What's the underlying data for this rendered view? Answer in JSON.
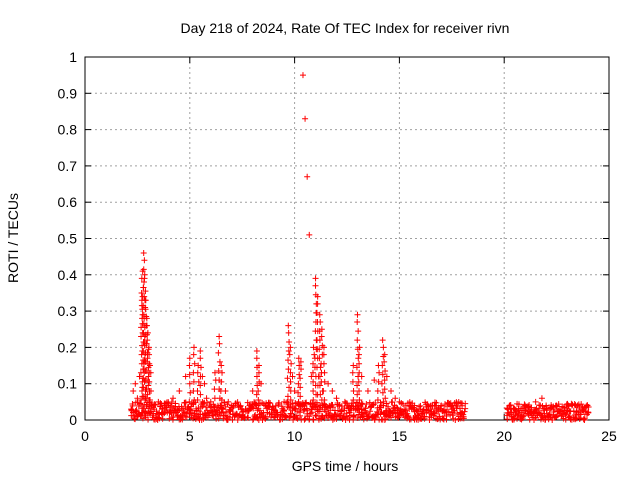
{
  "chart_data": {
    "type": "scatter",
    "title": "Day 218 of 2024, Rate Of TEC Index for receiver rivn",
    "xlabel": "GPS time / hours",
    "ylabel": "ROTI / TECUs",
    "xlim": [
      0,
      25
    ],
    "ylim": [
      0,
      1
    ],
    "xticks": [
      0,
      5,
      10,
      15,
      20,
      25
    ],
    "yticks": [
      0,
      0.1,
      0.2,
      0.3,
      0.4,
      0.5,
      0.6,
      0.7,
      0.8,
      0.9,
      1
    ],
    "grid": true,
    "marker": "+",
    "color": "#ff0000",
    "series": [
      {
        "x": [
          2.2,
          2.3,
          2.4,
          2.5,
          2.6,
          2.7,
          2.75,
          2.8,
          2.85,
          2.9,
          2.95,
          3.0,
          3.05,
          3.1,
          3.15,
          3.2,
          3.3,
          3.5,
          3.8,
          4.2,
          4.5,
          4.8,
          5.0,
          5.2,
          5.4,
          5.5,
          5.6,
          5.7,
          5.8,
          6.0,
          6.2,
          6.4,
          6.5,
          6.7,
          7.0,
          7.5,
          8.0,
          8.2,
          8.3,
          8.4,
          8.6,
          9.0,
          9.5,
          9.7,
          9.8,
          9.9,
          10.0,
          10.2,
          10.3,
          10.4,
          10.5,
          10.6,
          10.7,
          10.8,
          10.9,
          11.0,
          11.1,
          11.2,
          11.3,
          11.4,
          11.6,
          11.8,
          12.0,
          12.4,
          12.8,
          13.0,
          13.1,
          13.2,
          13.5,
          13.8,
          14.0,
          14.2,
          14.3,
          14.4,
          14.6,
          14.8,
          15.0,
          15.5,
          16.0,
          16.5,
          17.0,
          17.5,
          18.0,
          20.2,
          20.5,
          21.0,
          21.5,
          21.8,
          22.0,
          22.5,
          23.0,
          23.5,
          24.0
        ],
        "y": [
          0.03,
          0.08,
          0.1,
          0.06,
          0.12,
          0.35,
          0.41,
          0.46,
          0.4,
          0.33,
          0.28,
          0.24,
          0.2,
          0.15,
          0.08,
          0.04,
          0.03,
          0.05,
          0.04,
          0.06,
          0.08,
          0.12,
          0.17,
          0.2,
          0.15,
          0.19,
          0.12,
          0.1,
          0.06,
          0.05,
          0.13,
          0.23,
          0.15,
          0.08,
          0.04,
          0.03,
          0.08,
          0.19,
          0.15,
          0.1,
          0.04,
          0.03,
          0.05,
          0.26,
          0.2,
          0.12,
          0.08,
          0.17,
          0.16,
          0.95,
          0.83,
          0.67,
          0.51,
          0.12,
          0.2,
          0.39,
          0.34,
          0.29,
          0.25,
          0.2,
          0.1,
          0.08,
          0.06,
          0.05,
          0.15,
          0.29,
          0.2,
          0.12,
          0.08,
          0.11,
          0.15,
          0.22,
          0.18,
          0.12,
          0.08,
          0.06,
          0.05,
          0.04,
          0.03,
          0.03,
          0.04,
          0.03,
          0.02,
          0.02,
          0.03,
          0.04,
          0.05,
          0.06,
          0.04,
          0.04,
          0.03,
          0.04,
          0.02
        ]
      }
    ],
    "dense_segments": [
      {
        "x_start": 2.2,
        "x_end": 18.1,
        "base_max": 0.05
      },
      {
        "x_start": 20.1,
        "x_end": 24.0,
        "base_max": 0.045
      }
    ]
  }
}
